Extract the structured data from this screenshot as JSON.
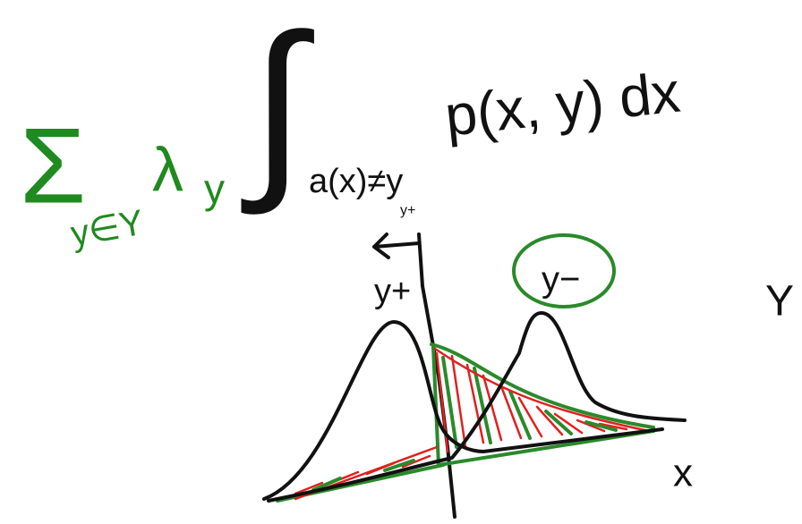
{
  "formula": {
    "sum": "Σ",
    "sum_index": "y∈Y",
    "weight": "λ",
    "weight_sub": "y",
    "integral": "∫",
    "integral_domain": "a(x)≠y",
    "integrand": "p(x, y) dx"
  },
  "labels": {
    "threshold": "y+",
    "class_left": "y+",
    "class_right": "y−",
    "set": "Y",
    "axis": "x"
  }
}
